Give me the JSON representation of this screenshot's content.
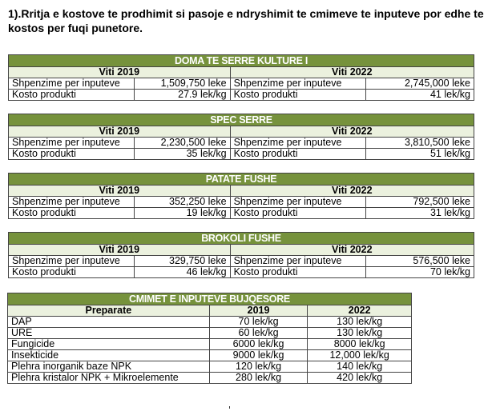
{
  "title": "1).Rritja e kostove te prodhimit si pasoje e ndryshimit te cmimeve te inputeve por edhe te kostos per fuqi punetore.",
  "crops": [
    {
      "name": "DOMA TE SERRE KULTURE I",
      "y1": "Viti 2019",
      "y2": "Viti 2022",
      "rows": [
        [
          "Shpenzime per inputeve",
          "1,509,750 leke",
          "Shpenzime per inputeve",
          "2,745,000 leke"
        ],
        [
          "Kosto produkti",
          "27.9 lek/kg",
          "Kosto produkti",
          "41 lek/kg"
        ]
      ]
    },
    {
      "name": "SPEC SERRE",
      "y1": "Viti 2019",
      "y2": "Viti 2022",
      "rows": [
        [
          "Shpenzime per inputeve",
          "2,230,500 leke",
          "Shpenzime per inputeve",
          "3,810,500 leke"
        ],
        [
          "Kosto produkti",
          "35 lek/kg",
          "Kosto produkti",
          "51 lek/kg"
        ]
      ]
    },
    {
      "name": "PATATE FUSHE",
      "y1": "Viti 2019",
      "y2": "Viti 2022",
      "rows": [
        [
          "Shpenzime per inputeve",
          "352,250 leke",
          "Shpenzime per inputeve",
          "792,500 leke"
        ],
        [
          "Kosto produkti",
          "19 lek/kg",
          "Kosto produkti",
          "31 lek/kg"
        ]
      ]
    },
    {
      "name": "BROKOLI FUSHE",
      "y1": "Viti 2019",
      "y2": "Viti 2022",
      "rows": [
        [
          "Shpenzime per inputeve",
          "329,750 leke",
          "Shpenzime per inputeve",
          "576,500 leke"
        ],
        [
          "Kosto produkti",
          "46 lek/kg",
          "Kosto produkti",
          "70 lek/kg"
        ]
      ]
    }
  ],
  "prices": {
    "name": "CMIMET E INPUTEVE BUJQESORE",
    "headers": [
      "Preparate",
      "2019",
      "2022"
    ],
    "rows": [
      [
        "DAP",
        "70 lek/kg",
        "130 lek/kg"
      ],
      [
        "URE",
        "60 lek/kg",
        "130 lek/kg"
      ],
      [
        "Fungicide",
        "6000 lek/kg",
        "8000 lek/kg"
      ],
      [
        "Insekticide",
        "9000 lek/kg",
        "12,000 lek/kg"
      ],
      [
        "Plehra inorganik  baze NPK",
        "120 lek/kg",
        "140 lek/kg"
      ],
      [
        "Plehra kristalor NPK + Mikroelemente",
        "280 lek/kg",
        "420 lek/kg"
      ]
    ]
  }
}
